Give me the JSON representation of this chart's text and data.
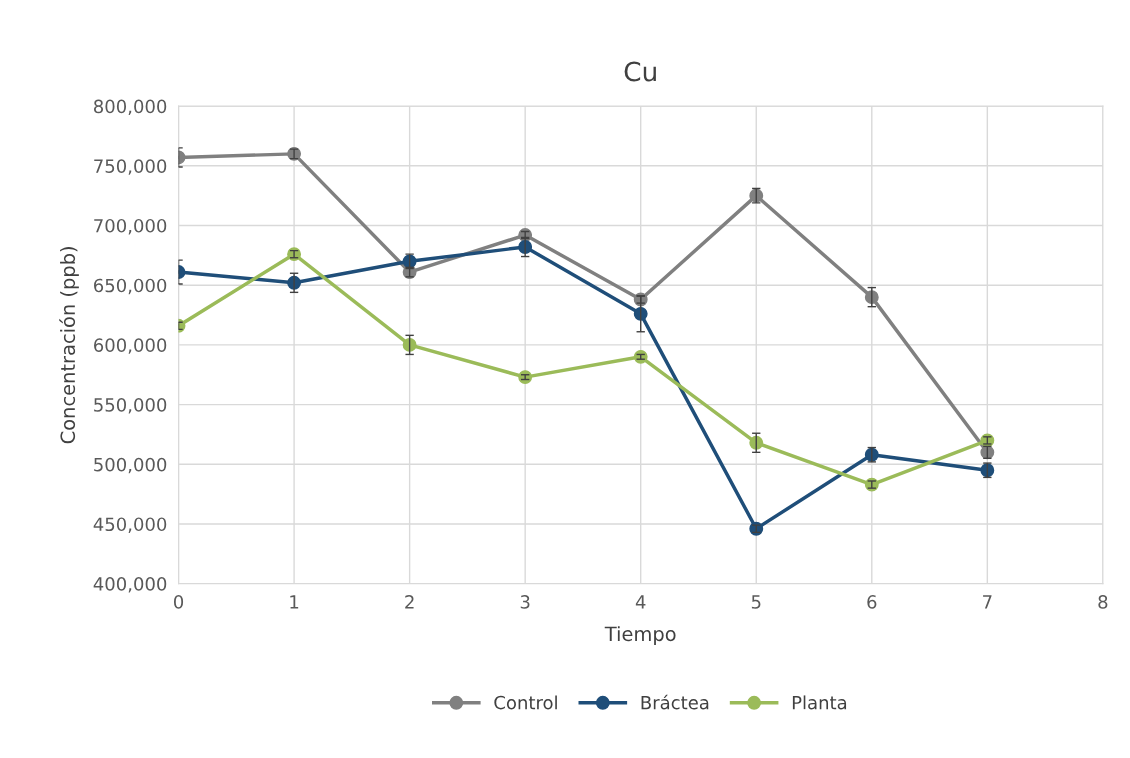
{
  "chart_data": {
    "type": "line",
    "title": "Cu",
    "xlabel": "Tiempo",
    "ylabel": "Concentración (ppb)",
    "x": [
      0,
      1,
      2,
      3,
      4,
      5,
      6,
      7
    ],
    "xlim": [
      0,
      8
    ],
    "xticks": [
      0,
      1,
      2,
      3,
      4,
      5,
      6,
      7,
      8
    ],
    "ylim": [
      400000,
      800000
    ],
    "yticks": [
      {
        "value": 400000,
        "label": "400,000"
      },
      {
        "value": 450000,
        "label": "450,000"
      },
      {
        "value": 500000,
        "label": "500,000"
      },
      {
        "value": 550000,
        "label": "550,000"
      },
      {
        "value": 600000,
        "label": "600,000"
      },
      {
        "value": 650000,
        "label": "650,000"
      },
      {
        "value": 700000,
        "label": "700,000"
      },
      {
        "value": 750000,
        "label": "750,000"
      },
      {
        "value": 800000,
        "label": "800,000"
      }
    ],
    "grid": true,
    "legend": "bottom",
    "marker": "circle",
    "line_style": "solid",
    "series": [
      {
        "name": "Control",
        "color": "#808080",
        "values": [
          757000,
          760000,
          661000,
          692000,
          638000,
          725000,
          640000,
          510000
        ],
        "errors": [
          8000,
          4000,
          4000,
          3000,
          3000,
          6000,
          8000,
          5000
        ]
      },
      {
        "name": "Bráctea",
        "color": "#1f4e79",
        "values": [
          661000,
          652000,
          670000,
          682000,
          626000,
          446000,
          508000,
          495000
        ],
        "errors": [
          10000,
          8000,
          6000,
          8000,
          15000,
          3000,
          6000,
          6000
        ]
      },
      {
        "name": "Planta",
        "color": "#9bbb59",
        "values": [
          616000,
          676000,
          600000,
          573000,
          590000,
          518000,
          483000,
          520000
        ],
        "errors": [
          3000,
          3000,
          8000,
          2000,
          2000,
          8000,
          3000,
          3000
        ]
      }
    ]
  }
}
